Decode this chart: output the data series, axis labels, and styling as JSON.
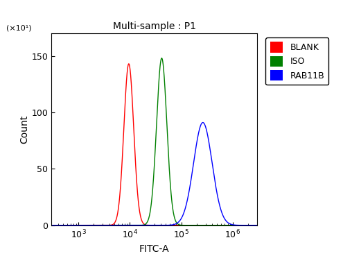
{
  "title": "Multi-sample : P1",
  "xlabel": "FITC-A",
  "ylabel": "Count",
  "y_label_multiplier": "(×10¹)",
  "xlim_log": [
    300.0,
    3000000.0
  ],
  "ylim": [
    0,
    170
  ],
  "yticks": [
    0,
    50,
    100,
    150
  ],
  "curves": [
    {
      "name": "BLANK",
      "color": "red",
      "peak_x_log": 3.98,
      "peak_y": 143,
      "sigma_log": 0.095
    },
    {
      "name": "ISO",
      "color": "green",
      "peak_x_log": 4.62,
      "peak_y": 148,
      "sigma_log": 0.1
    },
    {
      "name": "RAB11B",
      "color": "blue",
      "peak_x_log": 5.42,
      "peak_y": 91,
      "sigma_log": 0.18
    }
  ],
  "legend_colors": [
    "red",
    "green",
    "blue"
  ],
  "legend_labels": [
    "BLANK",
    "ISO",
    "RAB11B"
  ],
  "background_color": "#ffffff",
  "plot_bg_color": "#ffffff"
}
